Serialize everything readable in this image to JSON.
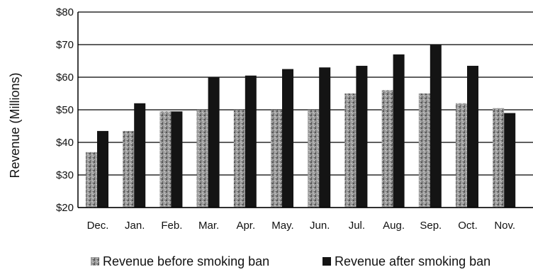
{
  "chart_data": {
    "type": "bar",
    "title": "",
    "xlabel": "",
    "ylabel": "Revenue (Millions)",
    "ylim": [
      20,
      80
    ],
    "yticks": [
      20,
      30,
      40,
      50,
      60,
      70,
      80
    ],
    "ytick_labels": [
      "$20",
      "$30",
      "$40",
      "$50",
      "$60",
      "$70",
      "$80"
    ],
    "grid": true,
    "legend_position": "bottom",
    "categories": [
      "Dec.",
      "Jan.",
      "Feb.",
      "Mar.",
      "Apr.",
      "May.",
      "Jun.",
      "Jul.",
      "Aug.",
      "Sep.",
      "Oct.",
      "Nov."
    ],
    "series": [
      {
        "name": "Revenue before smoking ban",
        "color": "#8a8a8a",
        "values": [
          37,
          43.5,
          49.5,
          50,
          50,
          50,
          50,
          55,
          56,
          55,
          52,
          50.5
        ]
      },
      {
        "name": "Revenue after smoking ban",
        "color": "#141414",
        "values": [
          43.5,
          52,
          49.5,
          60,
          60.5,
          62.5,
          63,
          63.5,
          67,
          70,
          63.5,
          49
        ]
      }
    ]
  }
}
